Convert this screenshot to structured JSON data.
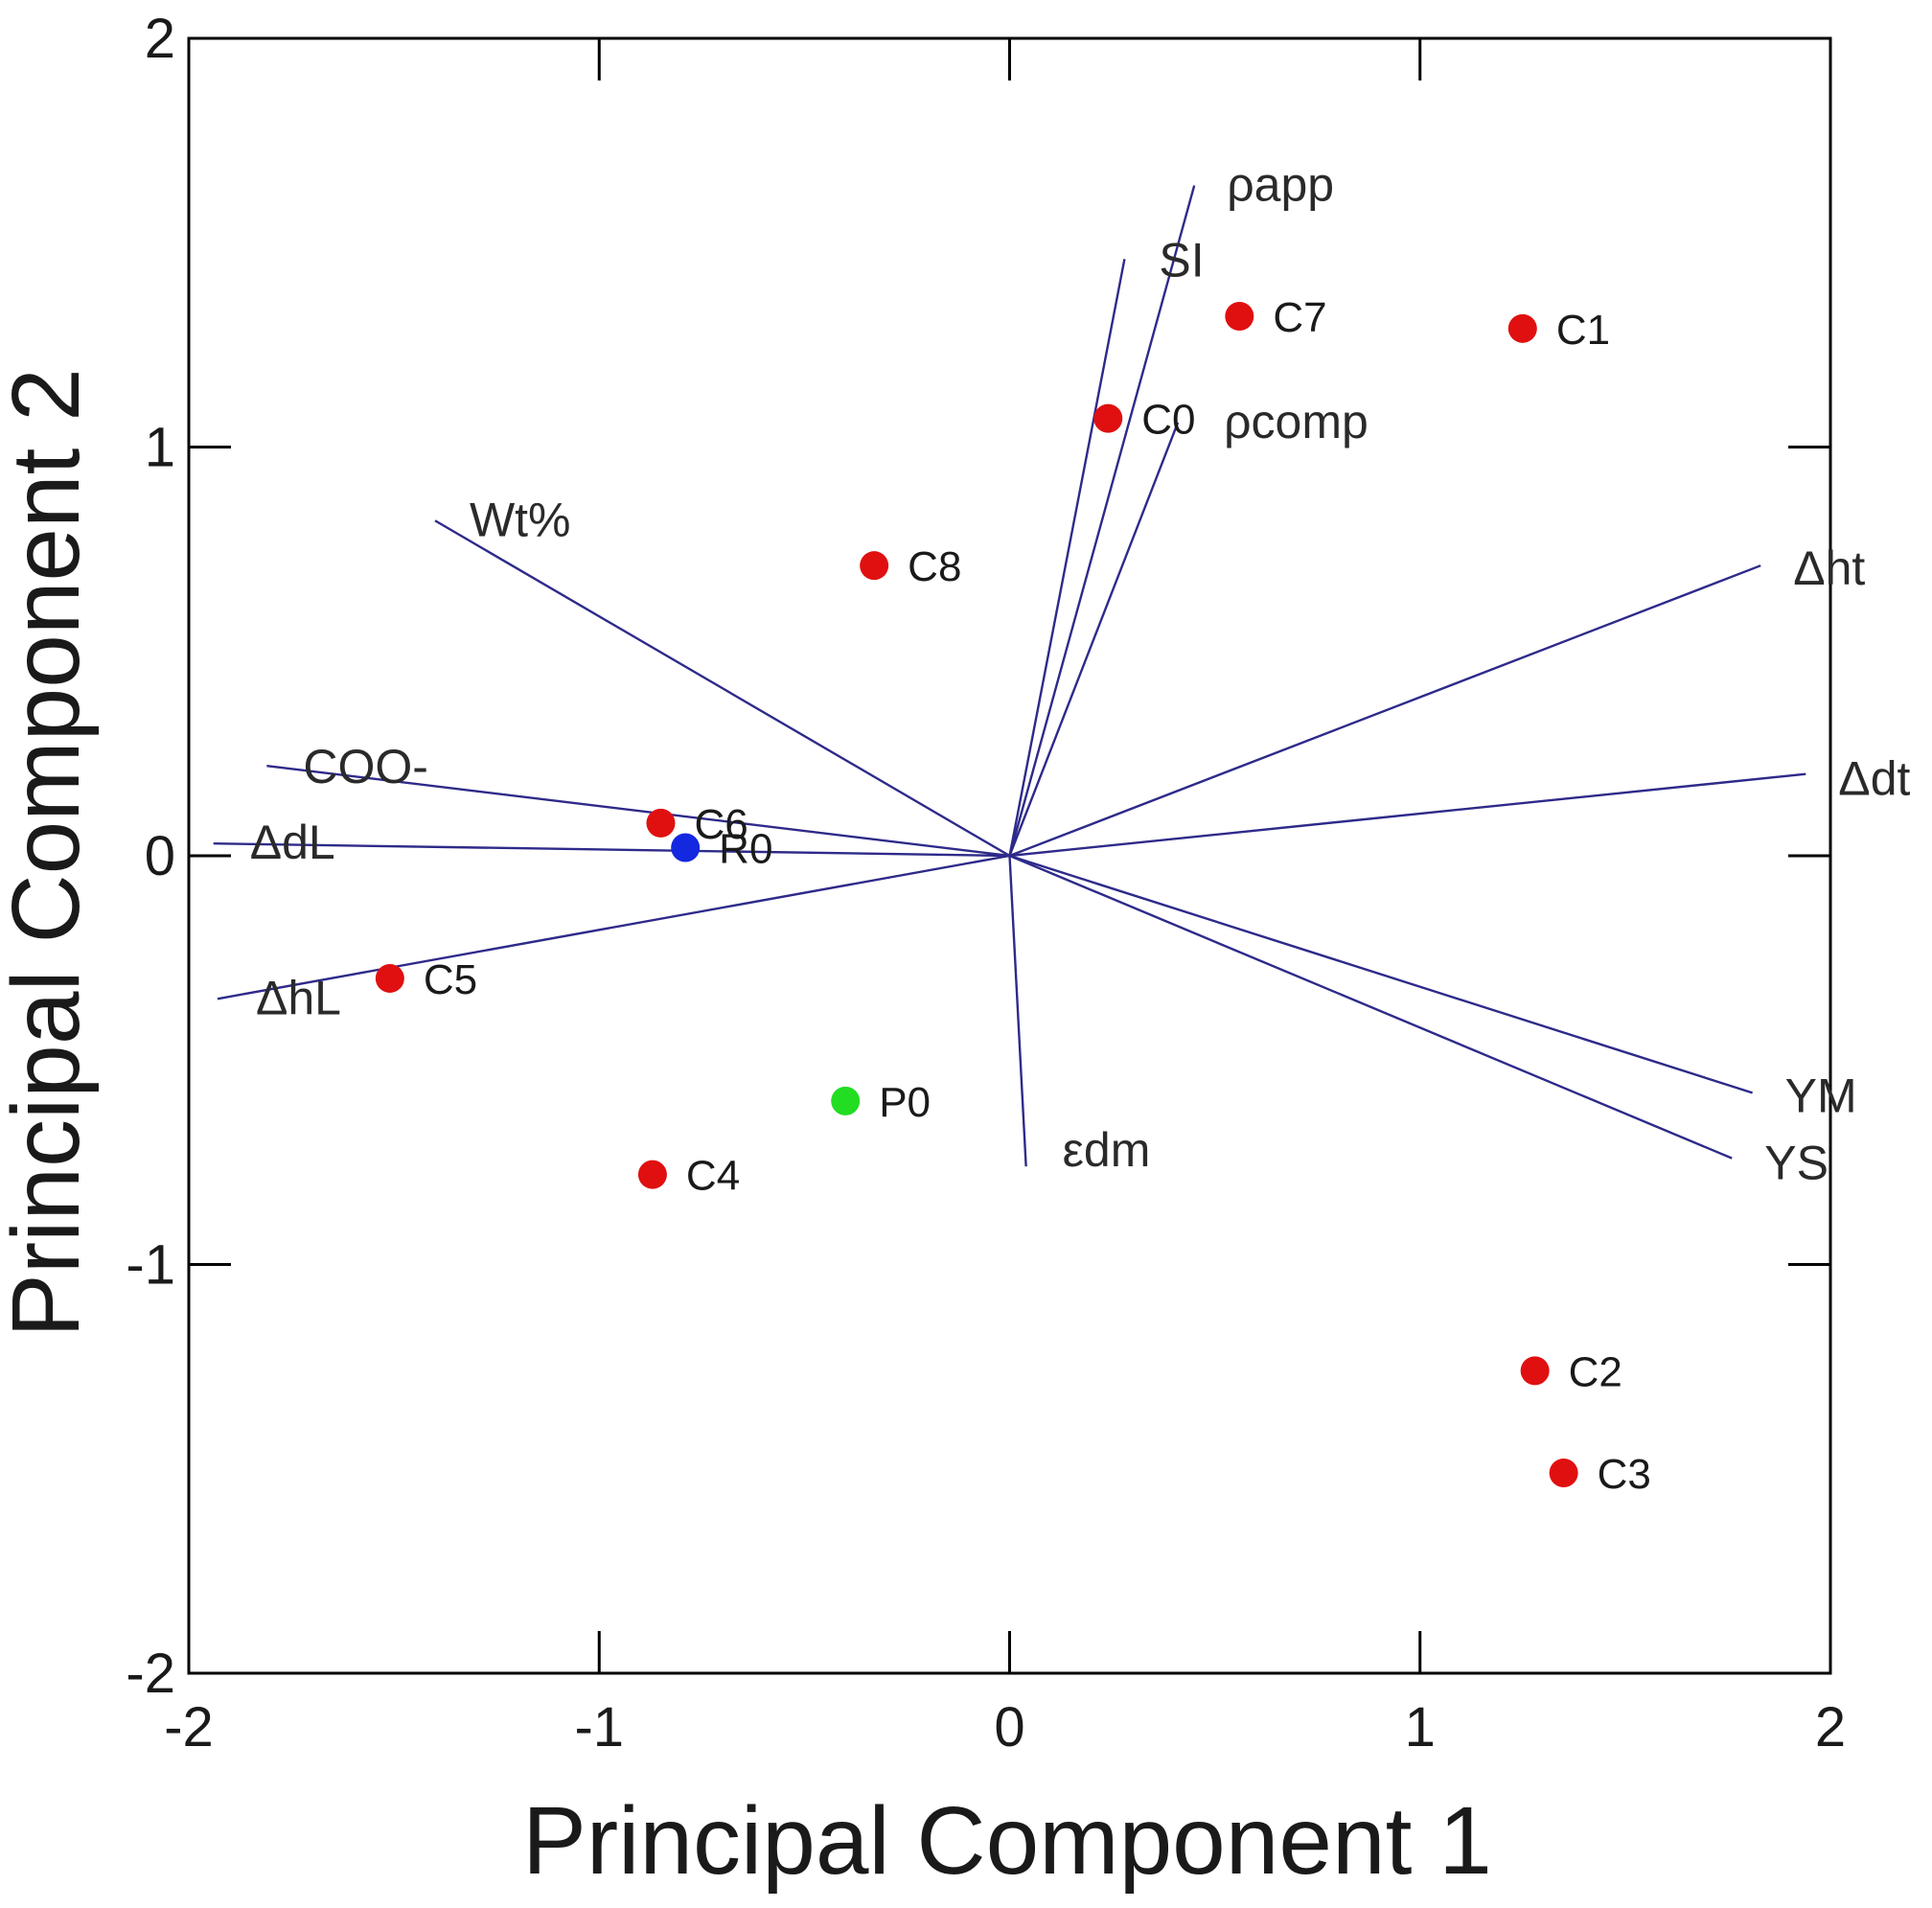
{
  "chart_data": {
    "type": "scatter",
    "subtype": "pca-biplot",
    "title": "",
    "xlabel": "Principal Component 1",
    "ylabel": "Principal Component 2",
    "xlim": [
      -2,
      2
    ],
    "ylim": [
      -2,
      2
    ],
    "xticks": [
      -2,
      -1,
      0,
      1,
      2
    ],
    "yticks": [
      -2,
      -1,
      0,
      1,
      2
    ],
    "grid": false,
    "vector_color": "#2e2a8a",
    "loadings": [
      {
        "name": "ρapp",
        "x": 0.45,
        "y": 1.64
      },
      {
        "name": "SI",
        "x": 0.28,
        "y": 1.46
      },
      {
        "name": "ρcomp",
        "x": 0.41,
        "y": 1.06
      },
      {
        "name": "Wt%",
        "x": -1.4,
        "y": 0.82
      },
      {
        "name": "Δht",
        "x": 1.83,
        "y": 0.71
      },
      {
        "name": "Δdt",
        "x": 1.94,
        "y": 0.2
      },
      {
        "name": "COO-",
        "x": -1.81,
        "y": 0.22
      },
      {
        "name": "ΔdL",
        "x": -1.94,
        "y": 0.03
      },
      {
        "name": "ΔhL",
        "x": -1.93,
        "y": -0.35
      },
      {
        "name": "YM",
        "x": 1.81,
        "y": -0.58
      },
      {
        "name": "YS",
        "x": 1.76,
        "y": -0.74
      },
      {
        "name": "εdm",
        "x": 0.04,
        "y": -0.76
      }
    ],
    "series": [
      {
        "name": "C",
        "color": "#e01010",
        "points": [
          {
            "label": "C7",
            "x": 0.56,
            "y": 1.32
          },
          {
            "label": "C1",
            "x": 1.25,
            "y": 1.29
          },
          {
            "label": "C0",
            "x": 0.24,
            "y": 1.07
          },
          {
            "label": "C8",
            "x": -0.33,
            "y": 0.71
          },
          {
            "label": "C6",
            "x": -0.85,
            "y": 0.08
          },
          {
            "label": "C5",
            "x": -1.51,
            "y": -0.3
          },
          {
            "label": "C4",
            "x": -0.87,
            "y": -0.78
          },
          {
            "label": "C2",
            "x": 1.28,
            "y": -1.26
          },
          {
            "label": "C3",
            "x": 1.35,
            "y": -1.51
          }
        ]
      },
      {
        "name": "R",
        "color": "#1428e0",
        "points": [
          {
            "label": "R0",
            "x": -0.79,
            "y": 0.02
          }
        ]
      },
      {
        "name": "P",
        "color": "#22dd22",
        "points": [
          {
            "label": "P0",
            "x": -0.4,
            "y": -0.6
          }
        ]
      }
    ]
  }
}
